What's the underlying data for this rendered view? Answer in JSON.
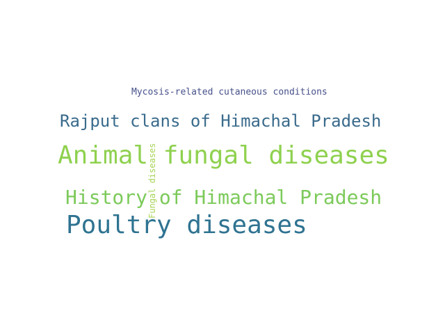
{
  "word_cloud": {
    "words": [
      {
        "text": "Mycosis-related cutaneous conditions",
        "color": "#46508a"
      },
      {
        "text": "Rajput clans of Himachal Pradesh",
        "color": "#3a6b8c"
      },
      {
        "text": "Animal fungal diseases",
        "color": "#8fd14f"
      },
      {
        "text": "Fungal diseases",
        "color": "#a6d455"
      },
      {
        "text": "History of Himachal Pradesh",
        "color": "#7cca5a"
      },
      {
        "text": "Poultry diseases",
        "color": "#2f7391"
      }
    ]
  }
}
